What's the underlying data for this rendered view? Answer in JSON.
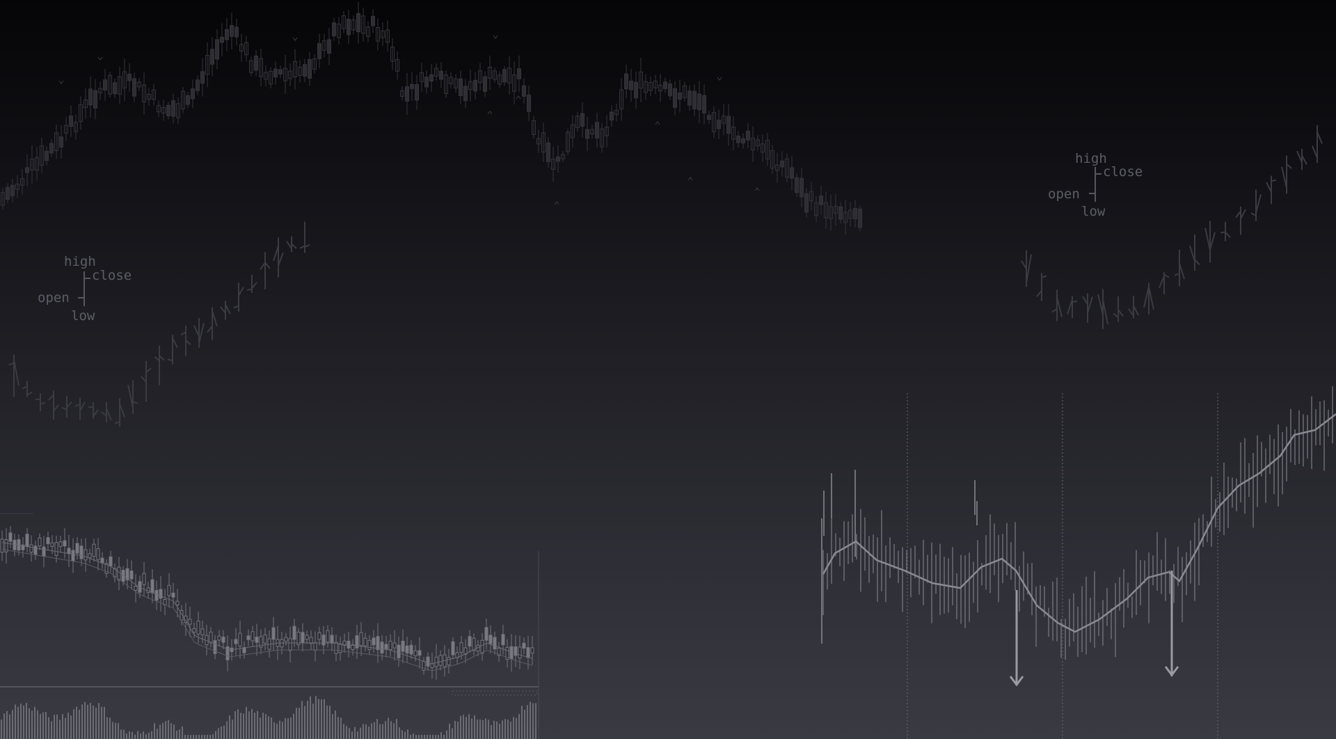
{
  "background": {
    "top_color": "#050507",
    "bottom_color": "#3a3a42",
    "gridline_color": "#57575f"
  },
  "ohlc_legend_left": {
    "high": "high",
    "close": "close",
    "open": "open",
    "low": "low"
  },
  "ohlc_legend_right": {
    "high": "high",
    "close": "close",
    "open": "open",
    "low": "low"
  },
  "icons": {
    "down_arrow": "arrow-down-icon"
  }
}
